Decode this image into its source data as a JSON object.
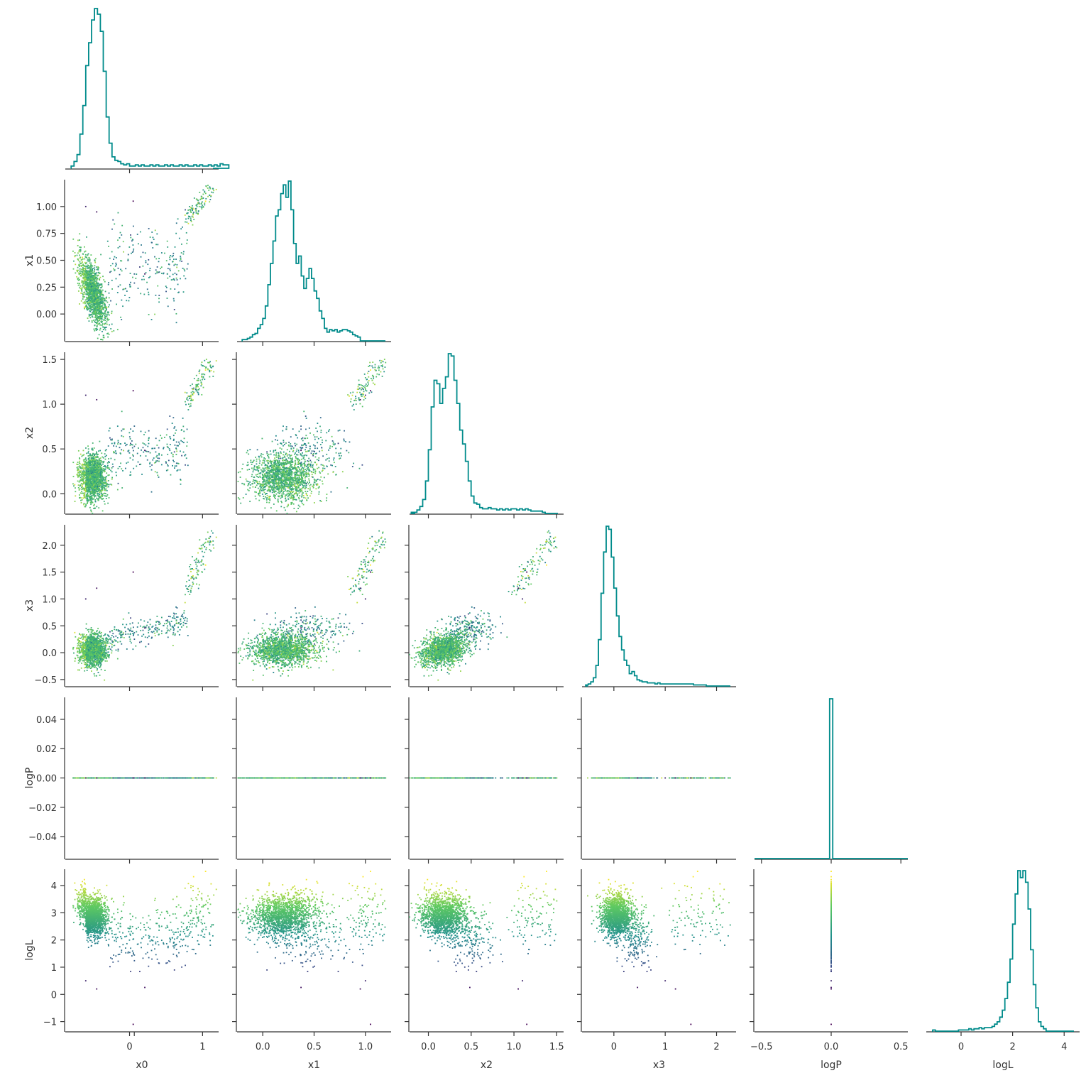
{
  "chart_data": {
    "type": "scatter",
    "subtype": "corner-plot",
    "title": "",
    "variables": [
      "x0",
      "x1",
      "x2",
      "x3",
      "logP",
      "logL"
    ],
    "x_axis_labels": [
      "x0",
      "x1",
      "x2",
      "x3",
      "logP",
      "logL"
    ],
    "y_axis_labels": [
      "",
      "x1",
      "x2",
      "x3",
      "logP",
      "logL"
    ],
    "ranges": {
      "x0": [
        -0.88,
        1.22
      ],
      "x1": [
        -0.25,
        1.25
      ],
      "x2": [
        -0.22,
        1.58
      ],
      "x3": [
        -0.62,
        2.38
      ],
      "logP": [
        -0.055,
        0.055
      ],
      "logL": [
        -1.35,
        4.6
      ]
    },
    "ticks": {
      "x0": [
        0,
        1
      ],
      "x1": [
        0.0,
        0.5,
        1.0
      ],
      "x2": [
        0.0,
        0.5,
        1.0,
        1.5
      ],
      "x3": [
        0,
        1,
        2
      ],
      "logP": [
        -0.5,
        0.0,
        0.5
      ],
      "logL": [
        0,
        2,
        4
      ]
    },
    "y_ticks": {
      "x1": [
        "1.00",
        "0.75",
        "0.50",
        "0.25",
        "0.00"
      ],
      "x1_values": [
        1.0,
        0.75,
        0.5,
        0.25,
        0.0
      ],
      "x2": [
        "1.5",
        "1.0",
        "0.5",
        "0.0"
      ],
      "x2_values": [
        1.5,
        1.0,
        0.5,
        0.0
      ],
      "x3": [
        "2.0",
        "1.5",
        "1.0",
        "0.5",
        "0.0",
        "−0.5"
      ],
      "x3_values": [
        2.0,
        1.5,
        1.0,
        0.5,
        0.0,
        -0.5
      ],
      "logP": [
        "0.04",
        "0.02",
        "0.00",
        "−0.02",
        "−0.04"
      ],
      "logP_values": [
        0.04,
        0.02,
        0.0,
        -0.02,
        -0.04
      ],
      "logL": [
        "4",
        "3",
        "2",
        "1",
        "0",
        "−1"
      ],
      "logL_values": [
        4,
        3,
        2,
        1,
        0,
        -1
      ]
    },
    "x_tick_labels": {
      "x0": [
        "0",
        "1"
      ],
      "x1": [
        "0.0",
        "0.5",
        "1.0"
      ],
      "x2": [
        "0.0",
        "0.5",
        "1.0",
        "1.5"
      ],
      "x3": [
        "0",
        "1",
        "2"
      ],
      "logP": [
        "−0.5",
        "0.0",
        "0.5"
      ],
      "logL": [
        "0",
        "2",
        "4"
      ]
    },
    "logP_hist_x_range": [
      -0.55,
      0.55
    ],
    "histograms": {
      "x0": {
        "start": -0.8,
        "bin_width": 0.04,
        "counts": [
          2,
          6,
          12,
          30,
          55,
          90,
          110,
          130,
          140,
          135,
          120,
          85,
          45,
          22,
          10,
          7,
          6,
          4,
          3,
          4,
          2,
          2,
          3,
          2,
          3,
          2,
          2,
          3,
          2,
          3,
          2,
          2,
          3,
          2,
          3,
          2,
          2,
          3,
          2,
          3,
          2,
          2,
          3,
          2,
          3,
          2,
          2,
          3,
          2,
          3,
          2,
          4,
          3,
          3
        ]
      },
      "x1": {
        "start": -0.2,
        "bin_width": 0.025,
        "counts": [
          1,
          1,
          2,
          3,
          5,
          6,
          10,
          13,
          18,
          28,
          45,
          62,
          80,
          100,
          105,
          118,
          125,
          115,
          128,
          105,
          78,
          62,
          68,
          52,
          42,
          50,
          58,
          50,
          40,
          34,
          24,
          18,
          10,
          7,
          9,
          8,
          9,
          7,
          8,
          9,
          9,
          8,
          7,
          5,
          4,
          3
        ]
      },
      "x2": {
        "start": -0.2,
        "bin_width": 0.0333,
        "counts": [
          1,
          1,
          3,
          6,
          12,
          28,
          55,
          92,
          115,
          112,
          95,
          108,
          118,
          138,
          136,
          115,
          95,
          72,
          60,
          45,
          28,
          15,
          9,
          8,
          5,
          4,
          4,
          5,
          4,
          4,
          3,
          4,
          3,
          4,
          3,
          4,
          4,
          3,
          4,
          3,
          4,
          3,
          2,
          2,
          2,
          2,
          1
        ]
      },
      "x3": {
        "start": -0.55,
        "bin_width": 0.05,
        "counts": [
          1,
          2,
          4,
          8,
          20,
          45,
          90,
          130,
          155,
          152,
          125,
          95,
          68,
          48,
          35,
          25,
          20,
          12,
          14,
          10,
          6,
          5,
          4,
          4,
          3,
          3,
          3,
          2,
          3,
          2,
          2,
          2,
          2,
          2,
          2,
          2,
          2,
          2,
          2,
          2,
          2,
          2,
          1,
          1,
          1,
          1,
          1
        ]
      },
      "logP": {
        "start": -0.011,
        "bin_width": 0.022,
        "counts": [
          100
        ]
      },
      "logL": {
        "start": -1.1,
        "bin_width": 0.1,
        "counts": [
          1,
          0,
          0,
          0,
          0,
          0,
          0,
          0,
          0,
          0,
          1,
          1,
          1,
          1,
          2,
          1,
          2,
          2,
          3,
          2,
          3,
          3,
          3,
          4,
          6,
          8,
          12,
          18,
          28,
          42,
          62,
          92,
          118,
          138,
          132,
          138,
          128,
          105,
          70,
          40,
          20,
          8,
          4,
          2
        ]
      }
    },
    "pairs": [
      "x0-x1",
      "x0-x2",
      "x0-x3",
      "x1-x2",
      "x1-x3",
      "x2-x3",
      "logP-*",
      "logL-*"
    ],
    "colormap": "viridis",
    "hist_color": "#008b8b",
    "axis_color": "#333333"
  }
}
